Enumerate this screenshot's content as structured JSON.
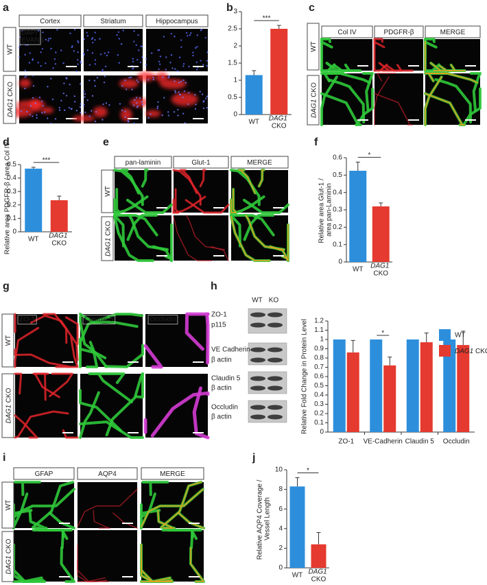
{
  "figure": {
    "a": {
      "letter": "a",
      "columns": [
        "Cortex",
        "Striatum",
        "Hippocampus"
      ],
      "rows": [
        "WT",
        "DAG1 CKO"
      ],
      "stains": [
        "DAPI",
        "EVANS"
      ]
    },
    "c": {
      "letter": "c",
      "columns": [
        "Col IV",
        "PDGFR-β",
        "MERGE"
      ],
      "rows": [
        "WT",
        "DAG1 CKO"
      ]
    },
    "e": {
      "letter": "e",
      "columns": [
        "pan-laminin",
        "Glut-1",
        "MERGE"
      ],
      "rows": [
        "WT",
        "DAG1 CKO"
      ]
    },
    "g": {
      "letter": "g",
      "channels": [
        "ZO-1",
        "Claudin 5",
        "Occludin"
      ],
      "rows": [
        "WT",
        "DAG1 CKO"
      ]
    },
    "h_blot": {
      "lanes": [
        "WT",
        "KO"
      ],
      "bands": [
        "ZO-1",
        "p115",
        "VE Cadherin",
        "β actin",
        "Claudin 5",
        "β actin",
        "Occludin",
        "β actin"
      ]
    },
    "i": {
      "letter": "i",
      "columns": [
        "GFAP",
        "AQP4",
        "MERGE"
      ],
      "rows": [
        "WT",
        "DAG1 CKO"
      ]
    }
  },
  "chart_data": [
    {
      "panel": "b",
      "type": "bar",
      "categories": [
        "WT",
        "DAG1 CKO"
      ],
      "values": [
        1.15,
        2.5
      ],
      "errors": [
        0.13,
        0.1
      ],
      "colors": [
        "#2d8fdc",
        "#e53a2f"
      ],
      "ylim": [
        0,
        3
      ],
      "yticks": [
        0,
        0.5,
        1,
        1.5,
        2,
        2.5,
        3
      ],
      "significance": "***"
    },
    {
      "panel": "d",
      "type": "bar",
      "ylabel": "Relative area PDGFR-β / area Col IV",
      "categories": [
        "WT",
        "DAG1 CKO"
      ],
      "values": [
        0.47,
        0.235
      ],
      "errors": [
        0.01,
        0.03
      ],
      "colors": [
        "#2d8fdc",
        "#e53a2f"
      ],
      "ylim": [
        0,
        0.5
      ],
      "yticks": [
        0,
        0.1,
        0.2,
        0.3,
        0.4,
        0.5
      ],
      "significance": "***"
    },
    {
      "panel": "f",
      "type": "bar",
      "ylabel": "Relative area Glut-1 / area pan-Laminin",
      "categories": [
        "WT",
        "DAG1 CKO"
      ],
      "values": [
        0.525,
        0.32
      ],
      "errors": [
        0.05,
        0.02
      ],
      "colors": [
        "#2d8fdc",
        "#e53a2f"
      ],
      "ylim": [
        0,
        0.6
      ],
      "yticks": [
        0,
        0.1,
        0.2,
        0.3,
        0.4,
        0.5,
        0.6
      ],
      "significance": "*"
    },
    {
      "panel": "h",
      "type": "grouped_bar",
      "ylabel": "Relative Fold Change in Protein Level",
      "categories": [
        "ZO-1",
        "VE-Cadherin",
        "Claudin 5",
        "Occludin"
      ],
      "series": [
        {
          "name": "WT",
          "color": "#2d8fdc",
          "values": [
            1,
            1,
            1,
            1
          ]
        },
        {
          "name": "DAG1 CKO",
          "color": "#e53a2f",
          "values": [
            0.86,
            0.72,
            0.97,
            0.94
          ],
          "errors": [
            0.13,
            0.09,
            0.1,
            0.15
          ]
        }
      ],
      "ylim": [
        0,
        1.2
      ],
      "yticks": [
        0,
        0.1,
        0.2,
        0.3,
        0.4,
        0.5,
        0.6,
        0.7,
        0.8,
        0.9,
        1,
        1.1,
        1.2
      ],
      "significance": [
        null,
        "*",
        null,
        null
      ],
      "legend": "top-right"
    },
    {
      "panel": "j",
      "type": "bar",
      "ylabel": "Relative AQP4 Coverage / Vessel Length",
      "categories": [
        "WT",
        "DAG1 CKO"
      ],
      "values": [
        8.3,
        2.4
      ],
      "errors": [
        0.9,
        1.2
      ],
      "colors": [
        "#2d8fdc",
        "#e53a2f"
      ],
      "ylim": [
        0,
        10
      ],
      "yticks": [
        0,
        2,
        4,
        6,
        8,
        10
      ],
      "significance": "*"
    }
  ]
}
